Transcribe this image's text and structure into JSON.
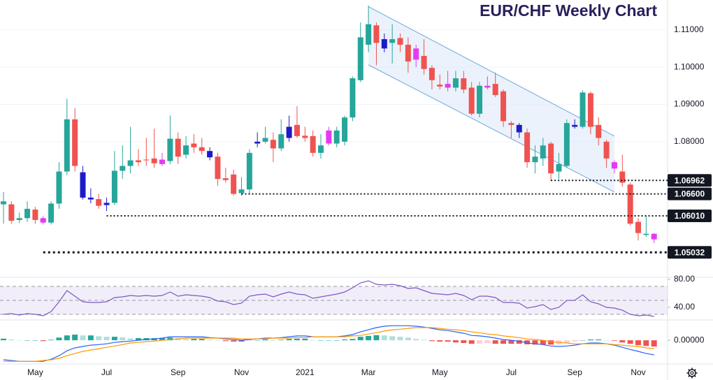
{
  "chart_data": [
    {
      "type": "candlestick",
      "title": "EUR/CHF Weekly Chart",
      "categories": [
        null,
        null,
        null,
        null,
        "May",
        null,
        null,
        null,
        null,
        null,
        null,
        null,
        null,
        "Jul",
        null,
        null,
        null,
        null,
        null,
        null,
        null,
        null,
        "Sep",
        null,
        null,
        null,
        null,
        null,
        null,
        null,
        "Nov",
        null,
        null,
        null,
        null,
        null,
        null,
        null,
        "2021",
        null,
        null,
        null,
        null,
        null,
        null,
        null,
        "Mar",
        null,
        null,
        null,
        null,
        null,
        null,
        null,
        null,
        "May",
        null,
        null,
        null,
        null,
        null,
        null,
        null,
        null,
        "Jul",
        null,
        null,
        null,
        null,
        null,
        null,
        null,
        "Sep",
        null,
        null,
        null,
        null,
        null,
        null,
        null,
        "Nov",
        null,
        null
      ],
      "open": [
        1.0632,
        1.0632,
        1.059,
        1.0595,
        1.0618,
        1.0595,
        1.0583,
        1.0634,
        1.072,
        1.086,
        1.0718,
        1.065,
        1.0646,
        1.063,
        1.0636,
        1.0722,
        1.0735,
        1.075,
        1.0752,
        1.0755,
        1.0752,
        1.0748,
        1.0808,
        1.0765,
        1.0795,
        1.0785,
        1.0775,
        1.076,
        1.0702,
        1.0712,
        1.0662,
        1.0672,
        1.0795,
        1.08,
        1.0805,
        1.0782,
        1.081,
        1.0845,
        1.0816,
        1.0815,
        1.077,
        1.083,
        1.0795,
        1.08,
        1.0865,
        1.0965,
        1.106,
        1.1112,
        1.1075,
        1.1065,
        1.1078,
        1.106,
        1.105,
        1.103,
        1.0998,
        1.0953,
        1.0955,
        1.0945,
        1.097,
        1.0945,
        1.0875,
        1.095,
        1.0955,
        1.0935,
        1.085,
        1.0845,
        1.0825,
        1.0745,
        1.0755,
        1.0795,
        1.072,
        1.0735,
        1.0845,
        1.084,
        1.093,
        1.0845,
        1.08,
        1.0745,
        1.072,
        1.0685,
        1.0585,
        1.055,
        1.0553
      ],
      "high": [
        1.0665,
        1.064,
        1.061,
        1.064,
        1.0625,
        1.06,
        1.064,
        1.0745,
        1.0915,
        1.089,
        1.0735,
        1.0675,
        1.066,
        1.065,
        1.0775,
        1.079,
        1.084,
        1.078,
        1.081,
        1.0835,
        1.077,
        1.087,
        1.0825,
        1.0815,
        1.082,
        1.081,
        1.0785,
        1.077,
        1.073,
        1.0725,
        1.0705,
        1.078,
        1.0825,
        1.084,
        1.0825,
        1.086,
        1.087,
        1.0895,
        1.084,
        1.083,
        1.082,
        1.084,
        1.084,
        1.087,
        1.0975,
        1.112,
        1.1165,
        1.112,
        1.109,
        1.1115,
        1.109,
        1.108,
        1.106,
        1.1075,
        1.1005,
        1.098,
        1.099,
        1.099,
        1.099,
        1.096,
        1.096,
        1.0975,
        1.0985,
        1.094,
        1.0855,
        1.085,
        1.0835,
        1.079,
        1.081,
        1.08,
        1.077,
        1.086,
        1.086,
        1.0938,
        1.0935,
        1.0865,
        1.0805,
        1.075,
        1.0765,
        1.069,
        1.0595,
        1.0601,
        1.0555
      ],
      "low": [
        1.058,
        1.058,
        1.0582,
        1.0585,
        1.058,
        1.0578,
        1.0578,
        1.062,
        1.071,
        1.072,
        1.0645,
        1.0635,
        1.062,
        1.0614,
        1.063,
        1.07,
        1.0715,
        1.0735,
        1.0735,
        1.073,
        1.0735,
        1.074,
        1.074,
        1.0755,
        1.077,
        1.0765,
        1.075,
        1.0682,
        1.069,
        1.0655,
        1.0655,
        1.066,
        1.0785,
        1.0795,
        1.0745,
        1.0775,
        1.08,
        1.081,
        1.08,
        1.076,
        1.0755,
        1.079,
        1.0785,
        1.079,
        1.0855,
        1.096,
        1.104,
        1.1005,
        1.104,
        1.101,
        1.104,
        1.0985,
        1.1,
        1.098,
        1.094,
        1.094,
        1.0935,
        1.0935,
        1.093,
        1.087,
        1.0865,
        1.094,
        1.092,
        1.084,
        1.081,
        1.081,
        1.073,
        1.0715,
        1.0735,
        1.0695,
        1.07,
        1.073,
        1.0835,
        1.0835,
        1.082,
        1.079,
        1.073,
        1.0715,
        1.068,
        1.0575,
        1.0535,
        1.0545,
        1.0528
      ],
      "close": [
        1.064,
        1.0588,
        1.0595,
        1.062,
        1.059,
        1.0583,
        1.0634,
        1.072,
        1.086,
        1.0735,
        1.065,
        1.0645,
        1.0628,
        1.0636,
        1.0722,
        1.0735,
        1.075,
        1.0745,
        1.075,
        1.0742,
        1.074,
        1.0808,
        1.076,
        1.079,
        1.0785,
        1.0775,
        1.0758,
        1.07,
        1.0697,
        1.066,
        1.0672,
        1.077,
        1.08,
        1.081,
        1.0782,
        1.082,
        1.084,
        1.0815,
        1.081,
        1.077,
        1.079,
        1.0795,
        1.083,
        1.0865,
        1.097,
        1.108,
        1.1115,
        1.1065,
        1.105,
        1.1075,
        1.106,
        1.1015,
        1.102,
        1.0995,
        1.0965,
        1.0948,
        1.0945,
        1.097,
        1.094,
        1.0875,
        1.095,
        1.0945,
        1.0925,
        1.0855,
        1.0845,
        1.0825,
        1.0745,
        1.076,
        1.079,
        1.0715,
        1.074,
        1.085,
        1.084,
        1.0932,
        1.084,
        1.081,
        1.0755,
        1.0728,
        1.069,
        1.058,
        1.0555,
        1.0553,
        1.0538
      ],
      "colors": [
        "#26a69a",
        "#ef5350",
        "#26a69a",
        "#26a69a",
        "#ef5350",
        "#e33bf0",
        "#26a69a",
        "#26a69a",
        "#26a69a",
        "#ef5350",
        "#1c1cc7",
        "#1c1cc7",
        "#ef5350",
        "#1c1cc7",
        "#26a69a",
        "#26a69a",
        "#26a69a",
        "#ef5350",
        "#ef5350",
        "#ef5350",
        "#e33bf0",
        "#26a69a",
        "#ef5350",
        "#26a69a",
        "#ef5350",
        "#ef5350",
        "#1c1cc7",
        "#ef5350",
        "#ef5350",
        "#ef5350",
        "#26a69a",
        "#26a69a",
        "#1c1cc7",
        "#26a69a",
        "#ef5350",
        "#26a69a",
        "#1c1cc7",
        "#ef5350",
        "#ef5350",
        "#ef5350",
        "#26a69a",
        "#e33bf0",
        "#26a69a",
        "#26a69a",
        "#26a69a",
        "#26a69a",
        "#26a69a",
        "#ef5350",
        "#1c1cc7",
        "#26a69a",
        "#ef5350",
        "#ef5350",
        "#e33bf0",
        "#ef5350",
        "#ef5350",
        "#ef5350",
        "#e33bf0",
        "#26a69a",
        "#ef5350",
        "#ef5350",
        "#26a69a",
        "#e33bf0",
        "#ef5350",
        "#ef5350",
        "#ef5350",
        "#1c1cc7",
        "#ef5350",
        "#26a69a",
        "#26a69a",
        "#ef5350",
        "#26a69a",
        "#26a69a",
        "#1c1cc7",
        "#26a69a",
        "#ef5350",
        "#ef5350",
        "#ef5350",
        "#e33bf0",
        "#ef5350",
        "#ef5350",
        "#ef5350",
        "#26a69a",
        "#e33bf0"
      ],
      "ylim": [
        1.044,
        1.118
      ],
      "yticks": [
        {
          "value": 1.08,
          "label": "1.08000"
        },
        {
          "value": 1.09,
          "label": "1.09000"
        },
        {
          "value": 1.1,
          "label": "1.10000"
        },
        {
          "value": 1.11,
          "label": "1.11000"
        }
      ],
      "grid": true,
      "channel": {
        "upper": [
          [
            46,
            1.1162
          ],
          [
            77,
            1.0815
          ]
        ],
        "lower": [
          [
            46,
            1.1006
          ],
          [
            77,
            1.0665
          ]
        ],
        "color": "#6fa8dc"
      },
      "levels": [
        {
          "value": 1.06962,
          "label": "1.06962",
          "start": 69
        },
        {
          "value": 1.066,
          "label": "1.06600",
          "start": 30
        },
        {
          "value": 1.0601,
          "label": "1.06010",
          "start": 13
        },
        {
          "value": 1.05032,
          "label": "1.05032",
          "start": 5
        }
      ]
    },
    {
      "type": "line",
      "color": "#7e57c2",
      "values": [
        30,
        31,
        29,
        31,
        30,
        28,
        34,
        48,
        64,
        56,
        48,
        47,
        47,
        48,
        54,
        55,
        57,
        56,
        57,
        56,
        57,
        62,
        56,
        58,
        57,
        56,
        54,
        49,
        48,
        44,
        46,
        56,
        58,
        59,
        55,
        59,
        62,
        59,
        58,
        53,
        55,
        57,
        59,
        62,
        68,
        75,
        78,
        73,
        72,
        73,
        71,
        67,
        68,
        64,
        60,
        59,
        58,
        60,
        57,
        51,
        56,
        56,
        54,
        47,
        47,
        46,
        39,
        41,
        44,
        37,
        40,
        50,
        50,
        58,
        48,
        45,
        40,
        39,
        36,
        30,
        28,
        29,
        27
      ],
      "ylim": [
        24,
        82
      ],
      "yticks": [
        {
          "value": 40,
          "label": "40.00"
        },
        {
          "value": 80,
          "label": "80.00"
        }
      ],
      "bands": [
        30,
        50,
        70
      ]
    },
    {
      "type": "macd",
      "series": [
        {
          "color": "#2962ff",
          "values": [
            -0.0072,
            -0.0075,
            -0.0078,
            -0.0078,
            -0.0078,
            -0.0078,
            -0.007,
            -0.0057,
            -0.0039,
            -0.0028,
            -0.0023,
            -0.0018,
            -0.0016,
            -0.0013,
            -0.0008,
            -0.0005,
            -0.0003,
            0,
            0.0003,
            0.0005,
            0.0008,
            0.0013,
            0.0013,
            0.0013,
            0.0013,
            0.0013,
            0.001,
            0.0008,
            0.0005,
            0.0003,
            0,
            0.0003,
            0.0005,
            0.0008,
            0.0008,
            0.001,
            0.0013,
            0.0016,
            0.0016,
            0.0013,
            0.0013,
            0.0013,
            0.0013,
            0.0016,
            0.0021,
            0.0031,
            0.0039,
            0.0047,
            0.0052,
            0.0054,
            0.0054,
            0.0054,
            0.0052,
            0.0049,
            0.0044,
            0.0039,
            0.0036,
            0.0031,
            0.0026,
            0.0018,
            0.0016,
            0.0013,
            0.0008,
            0.0003,
            0,
            -0.0003,
            -0.001,
            -0.0013,
            -0.0016,
            -0.0021,
            -0.0023,
            -0.0021,
            -0.0018,
            -0.0013,
            -0.001,
            -0.001,
            -0.0013,
            -0.0018,
            -0.0026,
            -0.0034,
            -0.0041,
            -0.0049,
            -0.0054
          ]
        },
        {
          "color": "#ff9800",
          "values": [
            -0.0078,
            -0.0078,
            -0.0078,
            -0.0078,
            -0.0078,
            -0.0075,
            -0.0072,
            -0.0067,
            -0.0057,
            -0.0049,
            -0.0041,
            -0.0036,
            -0.0031,
            -0.0026,
            -0.0021,
            -0.0016,
            -0.001,
            -0.0008,
            -0.0005,
            -0.0003,
            0,
            0.0003,
            0.0005,
            0.0008,
            0.0008,
            0.0008,
            0.0008,
            0.0008,
            0.0008,
            0.0008,
            0.0005,
            0.0005,
            0.0005,
            0.0005,
            0.0008,
            0.0008,
            0.0008,
            0.001,
            0.001,
            0.0013,
            0.0013,
            0.0013,
            0.0013,
            0.0013,
            0.0016,
            0.0018,
            0.0023,
            0.0028,
            0.0034,
            0.0039,
            0.0041,
            0.0044,
            0.0047,
            0.0047,
            0.0047,
            0.0044,
            0.0041,
            0.0039,
            0.0036,
            0.0031,
            0.0028,
            0.0023,
            0.0021,
            0.0016,
            0.0013,
            0.001,
            0.0005,
            0.0003,
            0,
            -0.0005,
            -0.0008,
            -0.001,
            -0.0013,
            -0.0013,
            -0.0013,
            -0.0013,
            -0.0013,
            -0.0016,
            -0.0018,
            -0.0021,
            -0.0023,
            -0.0028,
            -0.0031
          ]
        }
      ],
      "histogram": [
        0.0006,
        0.0003,
        0,
        0,
        0,
        -0.0003,
        0.0002,
        0.001,
        0.0018,
        0.0021,
        0.0018,
        0.0018,
        0.0015,
        0.0013,
        0.0013,
        0.0011,
        0.0007,
        0.0008,
        0.0008,
        0.0008,
        0.0008,
        0.001,
        0.0008,
        0.0005,
        0.0005,
        0.0005,
        0.0002,
        0,
        -0.0003,
        -0.0005,
        -0.0005,
        -0.0002,
        0,
        0.0003,
        0,
        0.0002,
        0.0005,
        0.0006,
        0.0006,
        0,
        0,
        0,
        0,
        0.0003,
        0.0005,
        0.0013,
        0.0016,
        0.0019,
        0.0018,
        0.0015,
        0.0013,
        0.001,
        0.0005,
        0.0002,
        -0.0003,
        -0.0005,
        -0.0005,
        -0.0008,
        -0.001,
        -0.0013,
        -0.0012,
        -0.001,
        -0.0013,
        -0.0013,
        -0.0013,
        -0.0013,
        -0.0015,
        -0.0016,
        -0.0016,
        -0.0016,
        -0.0015,
        -0.0011,
        -0.0005,
        0,
        0.0003,
        0.0003,
        0,
        -0.0002,
        -0.0008,
        -0.0013,
        -0.0018,
        -0.0021,
        -0.0023
      ],
      "histogram_colors": {
        "up": "#26a69a",
        "up_weak": "#b2dfdb",
        "down": "#ef5350",
        "down_weak": "#ffcdd2"
      },
      "ylim": [
        -0.0085,
        0.0065
      ],
      "yticks": [
        {
          "value": 0,
          "label": "0.00000"
        }
      ]
    }
  ]
}
